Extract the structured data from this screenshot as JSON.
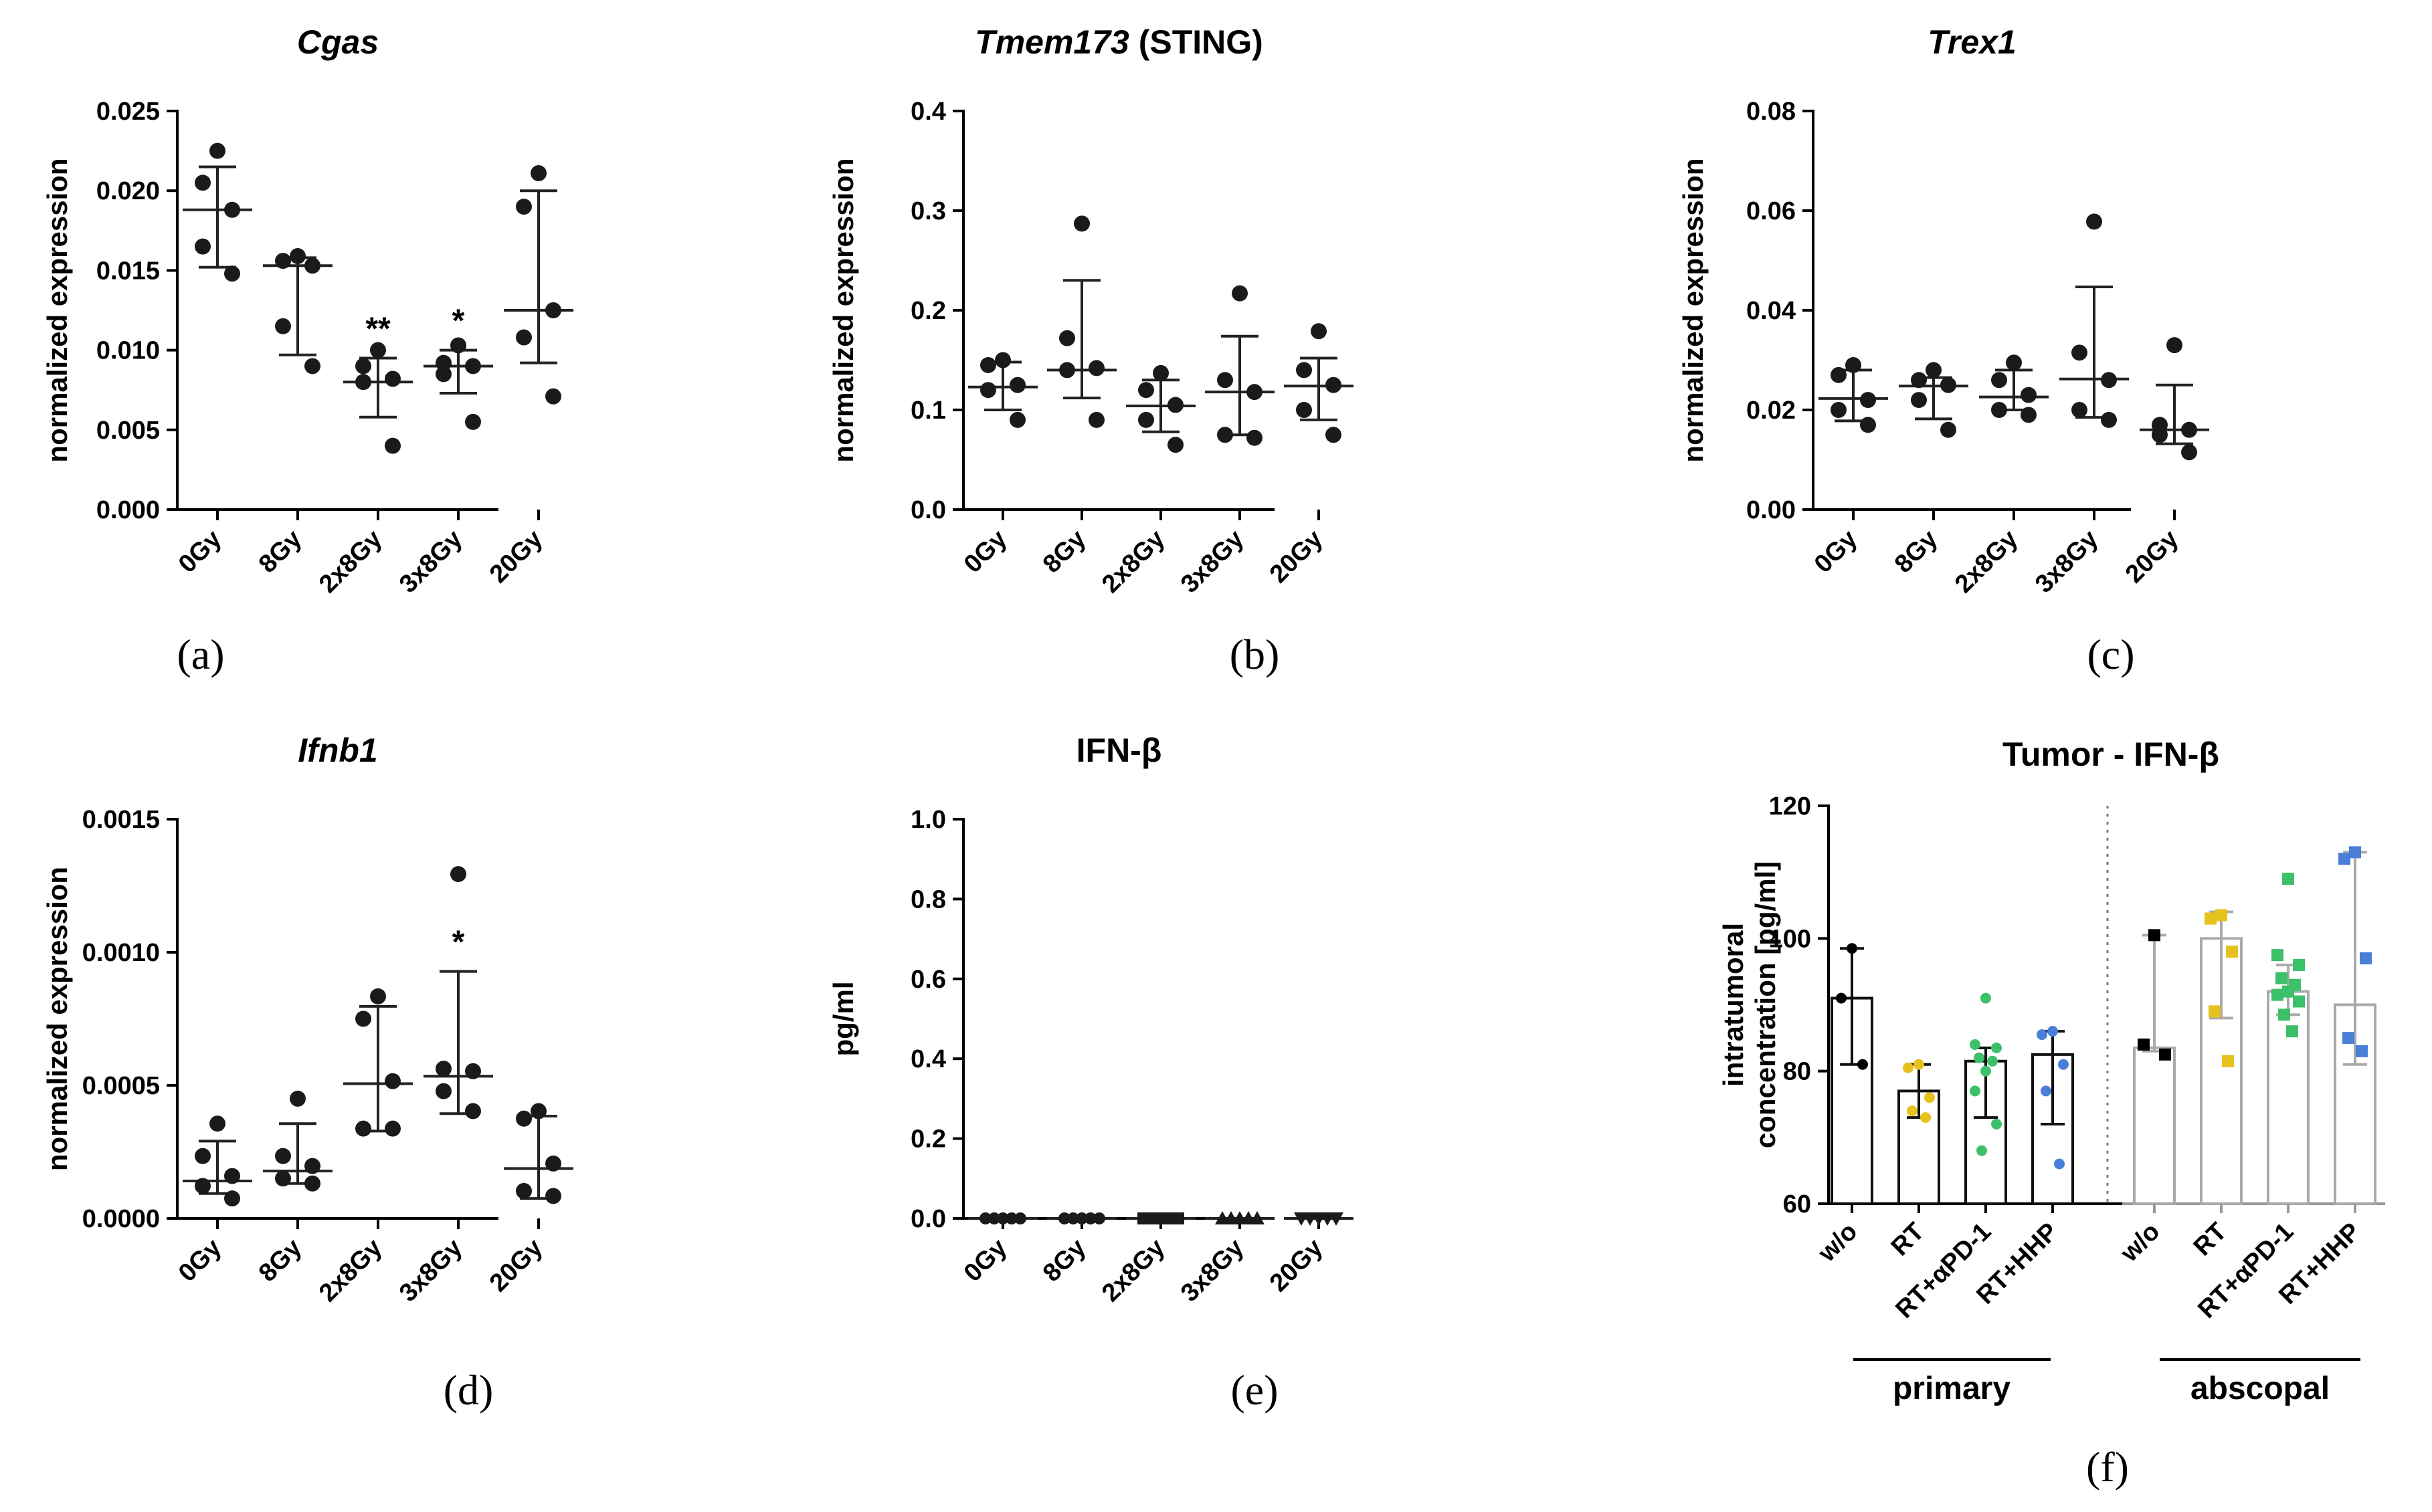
{
  "chart_data": [
    {
      "type": "scatter",
      "label": "(a)",
      "title_italic": "Cgas",
      "title_normal": "",
      "ylabel": "normalized expression",
      "ylim": [
        0,
        0.025
      ],
      "yticks": [
        "0.000",
        "0.005",
        "0.010",
        "0.015",
        "0.020",
        "0.025"
      ],
      "categories": [
        "0Gy",
        "8Gy",
        "2x8Gy",
        "3x8Gy",
        "20Gy"
      ],
      "points": [
        [
          0.0225,
          0.0205,
          0.0188,
          0.0165,
          0.0148
        ],
        [
          0.0159,
          0.0156,
          0.0153,
          0.0115,
          0.009
        ],
        [
          0.01,
          0.009,
          0.0082,
          0.008,
          0.004
        ],
        [
          0.0103,
          0.0092,
          0.009,
          0.0085,
          0.0055
        ],
        [
          0.0211,
          0.019,
          0.0125,
          0.0108,
          0.0071
        ]
      ],
      "center": [
        0.0188,
        0.0153,
        0.008,
        0.009,
        0.0125
      ],
      "err_low": [
        0.0152,
        0.0097,
        0.0058,
        0.0073,
        0.0092
      ],
      "err_high": [
        0.0215,
        0.0158,
        0.0095,
        0.01,
        0.02
      ],
      "annotations": [
        "",
        "",
        "**",
        "*",
        ""
      ]
    },
    {
      "type": "scatter",
      "label": "(b)",
      "title_italic": "Tmem173",
      "title_normal": " (STING)",
      "ylabel": "normalized expression",
      "ylim": [
        0,
        0.4
      ],
      "yticks": [
        "0.0",
        "0.1",
        "0.2",
        "0.3",
        "0.4"
      ],
      "categories": [
        "0Gy",
        "8Gy",
        "2x8Gy",
        "3x8Gy",
        "20Gy"
      ],
      "points": [
        [
          0.15,
          0.145,
          0.125,
          0.12,
          0.09
        ],
        [
          0.287,
          0.172,
          0.142,
          0.14,
          0.09
        ],
        [
          0.137,
          0.12,
          0.105,
          0.09,
          0.065
        ],
        [
          0.217,
          0.13,
          0.118,
          0.075,
          0.072
        ],
        [
          0.179,
          0.14,
          0.125,
          0.1,
          0.075
        ]
      ],
      "center": [
        0.123,
        0.14,
        0.104,
        0.118,
        0.124
      ],
      "err_low": [
        0.1,
        0.112,
        0.078,
        0.075,
        0.09
      ],
      "err_high": [
        0.148,
        0.23,
        0.13,
        0.174,
        0.152
      ],
      "annotations": [
        "",
        "",
        "",
        "",
        ""
      ]
    },
    {
      "type": "scatter",
      "label": "(c)",
      "title_italic": "Trex1",
      "title_normal": "",
      "ylabel": "normalized expression",
      "ylim": [
        0,
        0.08
      ],
      "yticks": [
        "0.00",
        "0.02",
        "0.04",
        "0.06",
        "0.08"
      ],
      "categories": [
        "0Gy",
        "8Gy",
        "2x8Gy",
        "3x8Gy",
        "20Gy"
      ],
      "points": [
        [
          0.029,
          0.027,
          0.022,
          0.02,
          0.017
        ],
        [
          0.028,
          0.026,
          0.025,
          0.022,
          0.016
        ],
        [
          0.0295,
          0.026,
          0.023,
          0.02,
          0.019
        ],
        [
          0.0578,
          0.0315,
          0.026,
          0.02,
          0.018
        ],
        [
          0.033,
          0.017,
          0.016,
          0.015,
          0.0115
        ]
      ],
      "center": [
        0.0223,
        0.0248,
        0.0226,
        0.0262,
        0.016
      ],
      "err_low": [
        0.0178,
        0.0182,
        0.02,
        0.0185,
        0.0132
      ],
      "err_high": [
        0.028,
        0.0265,
        0.028,
        0.0447,
        0.025
      ],
      "annotations": [
        "",
        "",
        "",
        "",
        ""
      ]
    },
    {
      "type": "scatter",
      "label": "(d)",
      "title_italic": "Ifnb1",
      "title_normal": "",
      "ylabel": "normalized expression",
      "ylim": [
        0,
        0.0016
      ],
      "yticks": [
        "0.0000",
        "0.0005",
        "0.0010",
        "0.0015"
      ],
      "categories": [
        "0Gy",
        "8Gy",
        "2x8Gy",
        "3x8Gy",
        "20Gy"
      ],
      "points": [
        [
          0.00038,
          0.00025,
          0.00017,
          0.00013,
          8e-05
        ],
        [
          0.00048,
          0.00025,
          0.00021,
          0.00016,
          0.00014
        ],
        [
          0.00089,
          0.0008,
          0.00055,
          0.00036,
          0.00036
        ],
        [
          0.00138,
          0.0006,
          0.00059,
          0.00051,
          0.00043
        ],
        [
          0.00043,
          0.0004,
          0.00022,
          0.00011,
          9e-05
        ]
      ],
      "center": [
        0.00015,
        0.00019,
        0.00054,
        0.00057,
        0.0002
      ],
      "err_low": [
        0.0001,
        0.00014,
        0.00035,
        0.00042,
        8e-05
      ],
      "err_high": [
        0.00031,
        0.00038,
        0.00085,
        0.00099,
        0.00041
      ],
      "annotations": [
        "",
        "",
        "",
        "*",
        ""
      ]
    },
    {
      "type": "scatter",
      "label": "(e)",
      "title_italic": "",
      "title_normal": "IFN-β",
      "ylabel": "pg/ml",
      "ylim": [
        0,
        1
      ],
      "yticks": [
        "0.0",
        "0.2",
        "0.4",
        "0.6",
        "0.8",
        "1.0"
      ],
      "categories": [
        "0Gy",
        "8Gy",
        "2x8Gy",
        "3x8Gy",
        "20Gy"
      ],
      "points": [
        [
          0,
          0,
          0,
          0,
          0
        ],
        [
          0,
          0,
          0,
          0,
          0
        ],
        [
          0,
          0,
          0,
          0,
          0
        ],
        [
          0,
          0,
          0,
          0,
          0
        ],
        [
          0,
          0,
          0,
          0,
          0
        ]
      ],
      "markers": [
        "circle",
        "circle",
        "square",
        "triangle-up",
        "triangle-down"
      ],
      "center": [
        0,
        0,
        0,
        0,
        0
      ],
      "err_low": [
        0,
        0,
        0,
        0,
        0
      ],
      "err_high": [
        0,
        0,
        0,
        0,
        0
      ],
      "annotations": [
        "",
        "",
        "",
        "",
        ""
      ]
    },
    {
      "type": "bar",
      "label": "(f)",
      "title": "Tumor - IFN-β",
      "ylabel_line1": "intratumoral",
      "ylabel_line2": "concentration [pg/ml]",
      "ylim": [
        60,
        120
      ],
      "yticks": [
        "60",
        "80",
        "100",
        "120"
      ],
      "categories": [
        "w/o",
        "RT",
        "RT+αPD-1",
        "RT+HHP",
        "w/o",
        "RT",
        "RT+αPD-1",
        "RT+HHP"
      ],
      "groups": [
        "primary",
        "abscopal"
      ],
      "colors": [
        "#000000",
        "#e6c21e",
        "#3cc06a",
        "#4a7fd8"
      ],
      "values": [
        91,
        77,
        81.5,
        82.5,
        83.5,
        100,
        92,
        90
      ],
      "err_low": [
        81,
        73,
        73,
        72,
        83,
        88,
        88.5,
        81
      ],
      "err_high": [
        98.5,
        81,
        83.5,
        86,
        100.5,
        104,
        96,
        113
      ],
      "points": [
        [
          98.5,
          91,
          81
        ],
        [
          81,
          80.5,
          76,
          74,
          73
        ],
        [
          91,
          84,
          83.5,
          82,
          81.5,
          80,
          77,
          72,
          68
        ],
        [
          86,
          85.5,
          81,
          77,
          66
        ],
        [
          100.5,
          84,
          82.5
        ],
        [
          103.5,
          103,
          98,
          89,
          81.5
        ],
        [
          109,
          97.5,
          96,
          94,
          93,
          92,
          91.5,
          90.5,
          88.5,
          86
        ],
        [
          113,
          112,
          97,
          85,
          83
        ]
      ]
    }
  ]
}
